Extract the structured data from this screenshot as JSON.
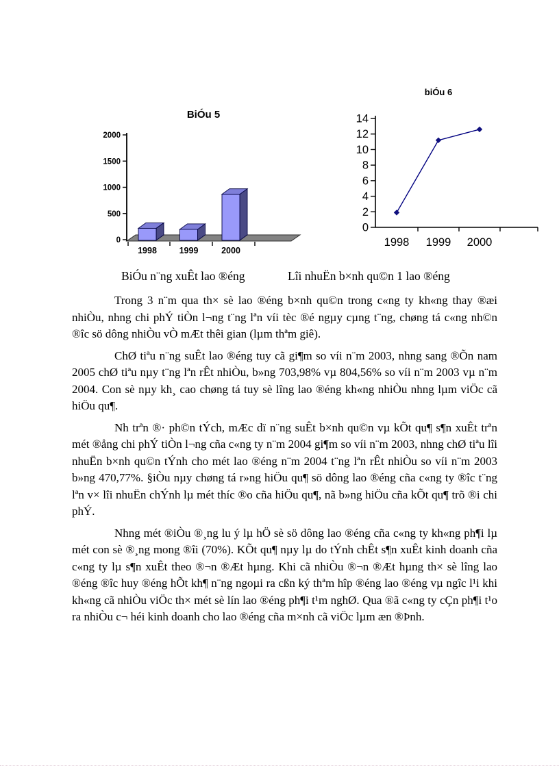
{
  "document": {
    "captions": {
      "bar_chart_caption": "BiÓu n¨ng xuÊt lao ®éng",
      "line_chart_caption": "Lîi nhuËn b×nh qu©n 1 lao ®éng"
    },
    "paragraphs": [
      "Trong 3 n¨m qua th× sè lao ®éng b×nh qu©n trong c«ng ty kh«ng thay ®æi nhiÒu, nhng chi phÝ tiÒn l¬ng t¨ng lªn víi tèc ®é ngµy cµng t¨ng, chøng tá c«ng nh©n ®îc sö dông nhiÒu vÒ mÆt thêi gian (lµm thªm giê).",
      "ChØ tiªu n¨ng suÊt lao ®éng tuy cã gi¶m so víi n¨m 2003, nhng sang ®Õn nam 2005 chØ tiªu nµy t¨ng lªn rÊt nhiÒu, b»ng 703,98% vµ 804,56% so víi n¨m 2003 vµ n¨m 2004. Con sè nµy kh¸ cao chøng tá tuy sè lîng lao ®éng kh«ng nhiÒu nhng lµm viÖc cã hiÖu qu¶.",
      "Nh trªn ®· ph©n tÝch, mÆc dï n¨ng suÊt b×nh qu©n vµ kÕt qu¶ s¶n xuÊt trªn mét ®ång chi phÝ tiÒn l¬ng cña c«ng ty n¨m 2004 gi¶m so víi n¨m 2003, nhng chØ tiªu lîi nhuËn b×nh qu©n tÝnh cho mét lao ®éng n¨m 2004 t¨ng lªn rÊt nhiÒu so víi n¨m 2003 b»ng 470,77%. §iÒu nµy chøng tá r»ng hiÖu qu¶ sö dông lao ®éng cña c«ng ty ®îc t¨ng lªn v× lîi nhuËn chÝnh lµ mét thíc ®o cña hiÖu qu¶, nã b»ng hiÖu cña kÕt qu¶ trõ ®i chi phÝ.",
      "Nhng mét ®iÒu ®¸ng lu ý lµ hÖ sè sö dông lao ®éng cña c«ng ty kh«ng ph¶i lµ mét con sè ®¸ng mong ®îi (70%). KÕt qu¶ nµy lµ do tÝnh chÊt s¶n xuÊt kinh doanh cña c«ng ty lµ s¶n xuÊt theo ®¬n ®Æt hµng. Khi cã nhiÒu ®¬n ®Æt hµng th× sè lîng lao ®éng ®îc huy ®éng hÕt kh¶ n¨ng ngoµi ra cßn ký thªm hîp ®éng lao ®éng vµ ngîc l¹i khi kh«ng cã nhiÒu viÖc th× mét sè lín lao ®éng ph¶i t¹m nghØ. Qua ®ã c«ng ty cÇn ph¶i t¹o ra nhiÒu c¬ héi kinh doanh cho lao ®éng cña m×nh cã viÖc lµm æn ®Þnh."
    ]
  },
  "chart_data": [
    {
      "type": "bar",
      "title": "BiÓu 5",
      "categories": [
        "1998",
        "1999",
        "2000"
      ],
      "values": [
        230,
        210,
        880
      ],
      "ylim": [
        0,
        2000
      ],
      "yticks": [
        0,
        500,
        1000,
        1500,
        2000
      ],
      "grid": false,
      "legend": "none",
      "style": "3d-column",
      "colors": {
        "front": "#9999fa",
        "top": "#7f7fd9",
        "side": "#4a4a85",
        "outline": "#000040",
        "floor": "#838383",
        "floor_edge": "#2e2e2e",
        "axis": "#000000"
      }
    },
    {
      "type": "line",
      "title": "biÓu 6",
      "categories": [
        "1998",
        "1999",
        "2000"
      ],
      "values": [
        1.9,
        11.2,
        12.6
      ],
      "ylim": [
        0,
        14
      ],
      "yticks": [
        0,
        2,
        4,
        6,
        8,
        10,
        12,
        14
      ],
      "grid": false,
      "legend": "none",
      "marker": "diamond",
      "colors": {
        "line": "#000080",
        "marker": "#10107e",
        "axis": "#000000"
      }
    }
  ]
}
